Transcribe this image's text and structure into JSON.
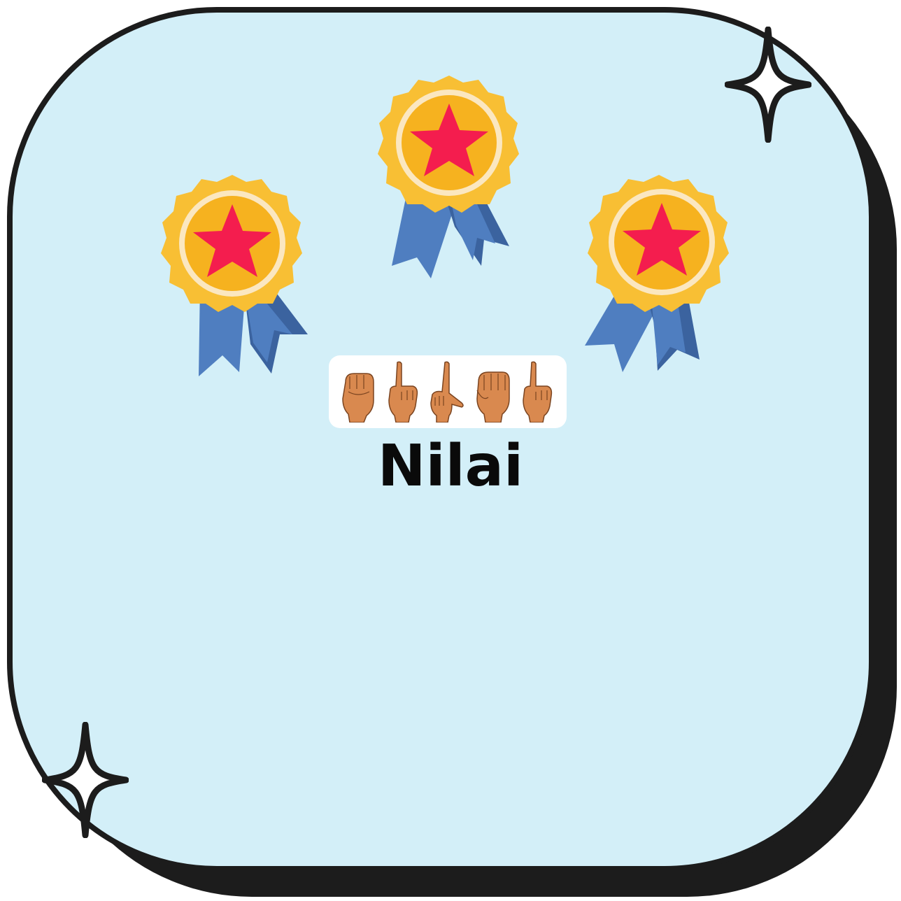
{
  "caption": "Nilai",
  "colors": {
    "card_background": "#d3eff8",
    "outline": "#1c1c1c",
    "medal_gold": "#f8bf34",
    "medal_ring": "#fbe7c0",
    "star": "#f41d4e",
    "ribbon": "#4f7ec0",
    "ribbon_dark": "#3b639f",
    "skin": "#d9894f"
  },
  "icons": {
    "medals": [
      "medal-icon",
      "medal-icon",
      "medal-icon"
    ],
    "sparkles": [
      "sparkle-icon",
      "sparkle-icon"
    ],
    "hand_signs": [
      "hand-sign-n-icon",
      "hand-sign-i-icon",
      "hand-sign-l-icon",
      "hand-sign-a-icon",
      "hand-sign-i-icon"
    ]
  }
}
